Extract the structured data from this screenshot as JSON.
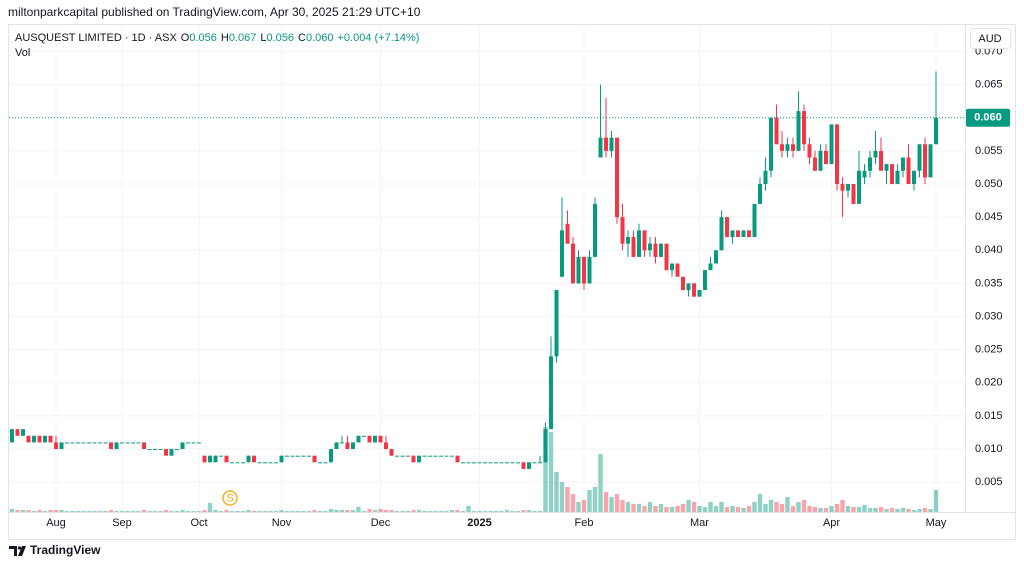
{
  "header": {
    "publisher": "miltonparkcapital published on TradingView.com, Apr 30, 2025 21:29 UTC+10"
  },
  "chart_data": {
    "type": "candlestick",
    "symbol": "AUSQUEST LIMITED · 1D · ASX",
    "legend": [
      {
        "key": "O",
        "value": "0.056"
      },
      {
        "key": "H",
        "value": "0.067"
      },
      {
        "key": "L",
        "value": "0.056"
      },
      {
        "key": "C",
        "value": "0.060"
      }
    ],
    "change_label": "+0.004 (+7.14%)",
    "volume_label": "Vol",
    "currency": "AUD",
    "last_price_label": "0.060",
    "event_marker": "S",
    "brand": "TradingView",
    "up_color": "#089981",
    "down_color": "#f23645",
    "grid": true,
    "ylim": [
      0.0005,
      0.074
    ],
    "yticks": [
      0.005,
      {
        "value": 0.01,
        "label": "0.010"
      },
      0.015,
      {
        "value": 0.02,
        "label": "0.020"
      },
      0.025,
      {
        "value": 0.03,
        "label": "0.030"
      },
      0.035,
      {
        "value": 0.04,
        "label": "0.040"
      },
      0.045,
      {
        "value": 0.05,
        "label": "0.050"
      },
      0.055,
      {
        "value": 0.06,
        "label": "0.060"
      },
      0.065,
      {
        "value": 0.07,
        "label": "0.070"
      }
    ],
    "categories": [
      null,
      null,
      null,
      null,
      null,
      null,
      null,
      null,
      "Aug",
      null,
      null,
      null,
      null,
      null,
      null,
      null,
      null,
      null,
      null,
      null,
      "Sep",
      null,
      null,
      null,
      null,
      null,
      null,
      null,
      null,
      null,
      null,
      null,
      null,
      null,
      "Oct",
      null,
      null,
      null,
      null,
      null,
      null,
      null,
      null,
      null,
      null,
      null,
      null,
      null,
      null,
      "Nov",
      null,
      null,
      null,
      null,
      null,
      null,
      null,
      null,
      null,
      null,
      null,
      null,
      null,
      null,
      null,
      null,
      null,
      "Dec",
      null,
      null,
      null,
      null,
      null,
      null,
      null,
      null,
      null,
      null,
      null,
      null,
      null,
      null,
      null,
      null,
      null,
      "2025",
      null,
      null,
      null,
      null,
      null,
      null,
      null,
      null,
      null,
      null,
      null,
      null,
      null,
      null,
      null,
      null,
      null,
      null,
      "Feb",
      null,
      null,
      null,
      null,
      null,
      null,
      null,
      null,
      null,
      null,
      null,
      null,
      null,
      null,
      null,
      null,
      null,
      null,
      null,
      null,
      "Mar",
      null,
      null,
      null,
      null,
      null,
      null,
      null,
      null,
      null,
      null,
      null,
      null,
      null,
      null,
      null,
      null,
      null,
      null,
      null,
      null,
      null,
      null,
      null,
      "Apr",
      null,
      null,
      null,
      null,
      null,
      null,
      null,
      null,
      null,
      null,
      null,
      null,
      null,
      null,
      null,
      null,
      null,
      null,
      "May"
    ],
    "bold_categories": [
      "2025"
    ],
    "open": [
      0.011,
      0.013,
      0.012,
      0.012,
      0.011,
      0.012,
      0.011,
      0.012,
      0.011,
      0.01,
      0.011,
      0.011,
      0.011,
      0.011,
      0.011,
      0.011,
      0.011,
      0.011,
      0.011,
      0.01,
      0.011,
      0.011,
      0.011,
      0.011,
      0.011,
      0.01,
      0.01,
      0.01,
      0.01,
      0.009,
      0.01,
      0.01,
      0.011,
      0.011,
      0.011,
      0.009,
      0.008,
      0.008,
      0.009,
      0.009,
      0.008,
      0.008,
      0.008,
      0.008,
      0.009,
      0.008,
      0.008,
      0.008,
      0.008,
      0.008,
      0.009,
      0.009,
      0.009,
      0.009,
      0.009,
      0.009,
      0.008,
      0.008,
      0.008,
      0.01,
      0.011,
      0.011,
      0.01,
      0.011,
      0.012,
      0.012,
      0.011,
      0.012,
      0.011,
      0.01,
      0.009,
      0.009,
      0.009,
      0.009,
      0.008,
      0.009,
      0.009,
      0.009,
      0.009,
      0.009,
      0.009,
      0.009,
      0.008,
      0.008,
      0.008,
      0.008,
      0.008,
      0.008,
      0.008,
      0.008,
      0.008,
      0.008,
      0.008,
      0.008,
      0.007,
      0.008,
      0.008,
      0.008,
      0.013,
      0.024,
      0.036,
      0.044,
      0.041,
      0.035,
      0.039,
      0.035,
      0.039,
      0.054,
      0.057,
      0.055,
      0.057,
      0.045,
      0.041,
      0.042,
      0.039,
      0.043,
      0.04,
      0.041,
      0.039,
      0.041,
      0.037,
      0.038,
      0.036,
      0.034,
      0.035,
      0.033,
      0.034,
      0.037,
      0.038,
      0.04,
      0.045,
      0.042,
      0.043,
      0.042,
      0.043,
      0.042,
      0.047,
      0.05,
      0.052,
      0.06,
      0.056,
      0.055,
      0.056,
      0.055,
      0.061,
      0.056,
      0.054,
      0.052,
      0.055,
      0.053,
      0.059,
      0.05,
      0.049,
      0.05,
      0.047,
      0.051,
      0.052,
      0.054,
      0.055,
      0.052,
      0.053,
      0.05,
      0.052,
      0.054,
      0.05,
      0.052,
      0.056,
      0.051,
      0.056
    ],
    "high": [
      0.013,
      0.013,
      0.013,
      0.012,
      0.012,
      0.012,
      0.012,
      0.012,
      0.012,
      0.011,
      0.011,
      0.011,
      0.011,
      0.011,
      0.011,
      0.011,
      0.011,
      0.011,
      0.011,
      0.011,
      0.011,
      0.011,
      0.011,
      0.011,
      0.011,
      0.01,
      0.01,
      0.01,
      0.01,
      0.01,
      0.01,
      0.011,
      0.011,
      0.011,
      0.011,
      0.009,
      0.009,
      0.009,
      0.009,
      0.009,
      0.008,
      0.008,
      0.008,
      0.009,
      0.009,
      0.008,
      0.008,
      0.008,
      0.008,
      0.009,
      0.009,
      0.009,
      0.009,
      0.009,
      0.009,
      0.009,
      0.008,
      0.008,
      0.01,
      0.011,
      0.012,
      0.012,
      0.011,
      0.012,
      0.012,
      0.012,
      0.012,
      0.012,
      0.012,
      0.01,
      0.009,
      0.009,
      0.009,
      0.009,
      0.009,
      0.009,
      0.009,
      0.009,
      0.009,
      0.009,
      0.009,
      0.009,
      0.008,
      0.008,
      0.008,
      0.008,
      0.008,
      0.008,
      0.008,
      0.008,
      0.008,
      0.008,
      0.008,
      0.008,
      0.008,
      0.008,
      0.009,
      0.014,
      0.027,
      0.034,
      0.048,
      0.046,
      0.042,
      0.04,
      0.039,
      0.04,
      0.048,
      0.065,
      0.063,
      0.058,
      0.057,
      0.047,
      0.043,
      0.043,
      0.044,
      0.043,
      0.042,
      0.042,
      0.041,
      0.041,
      0.038,
      0.038,
      0.036,
      0.035,
      0.035,
      0.034,
      0.037,
      0.039,
      0.04,
      0.046,
      0.045,
      0.043,
      0.043,
      0.043,
      0.043,
      0.047,
      0.051,
      0.054,
      0.06,
      0.062,
      0.058,
      0.057,
      0.057,
      0.064,
      0.062,
      0.057,
      0.055,
      0.056,
      0.056,
      0.059,
      0.059,
      0.051,
      0.05,
      0.05,
      0.055,
      0.053,
      0.055,
      0.058,
      0.057,
      0.053,
      0.053,
      0.053,
      0.054,
      0.056,
      0.052,
      0.056,
      0.057,
      0.056,
      0.067
    ],
    "low": [
      0.011,
      0.012,
      0.012,
      0.011,
      0.011,
      0.011,
      0.011,
      0.011,
      0.01,
      0.01,
      0.011,
      0.011,
      0.011,
      0.011,
      0.011,
      0.011,
      0.011,
      0.011,
      0.01,
      0.01,
      0.011,
      0.011,
      0.011,
      0.011,
      0.01,
      0.01,
      0.01,
      0.01,
      0.009,
      0.009,
      0.01,
      0.01,
      0.011,
      0.011,
      0.011,
      0.008,
      0.008,
      0.008,
      0.009,
      0.008,
      0.008,
      0.008,
      0.008,
      0.008,
      0.008,
      0.008,
      0.008,
      0.008,
      0.008,
      0.008,
      0.009,
      0.009,
      0.009,
      0.009,
      0.009,
      0.008,
      0.008,
      0.008,
      0.008,
      0.01,
      0.011,
      0.01,
      0.01,
      0.011,
      0.012,
      0.011,
      0.011,
      0.011,
      0.01,
      0.009,
      0.009,
      0.009,
      0.009,
      0.008,
      0.008,
      0.009,
      0.009,
      0.009,
      0.009,
      0.009,
      0.009,
      0.008,
      0.008,
      0.008,
      0.008,
      0.008,
      0.008,
      0.008,
      0.008,
      0.008,
      0.008,
      0.008,
      0.008,
      0.007,
      0.007,
      0.008,
      0.008,
      0.008,
      0.013,
      0.023,
      0.036,
      0.041,
      0.035,
      0.035,
      0.034,
      0.035,
      0.039,
      0.054,
      0.054,
      0.054,
      0.044,
      0.04,
      0.039,
      0.039,
      0.039,
      0.039,
      0.039,
      0.038,
      0.039,
      0.037,
      0.036,
      0.036,
      0.034,
      0.033,
      0.033,
      0.033,
      0.034,
      0.037,
      0.038,
      0.04,
      0.042,
      0.041,
      0.042,
      0.042,
      0.042,
      0.042,
      0.047,
      0.049,
      0.051,
      0.056,
      0.054,
      0.054,
      0.054,
      0.055,
      0.055,
      0.053,
      0.052,
      0.052,
      0.053,
      0.053,
      0.049,
      0.045,
      0.048,
      0.047,
      0.047,
      0.05,
      0.051,
      0.053,
      0.052,
      0.05,
      0.05,
      0.05,
      0.051,
      0.05,
      0.049,
      0.051,
      0.05,
      0.051,
      0.056
    ],
    "close": [
      0.013,
      0.012,
      0.013,
      0.011,
      0.012,
      0.011,
      0.012,
      0.011,
      0.01,
      0.011,
      0.011,
      0.011,
      0.011,
      0.011,
      0.011,
      0.011,
      0.011,
      0.011,
      0.01,
      0.011,
      0.011,
      0.011,
      0.011,
      0.011,
      0.01,
      0.01,
      0.01,
      0.01,
      0.009,
      0.01,
      0.01,
      0.011,
      0.011,
      0.011,
      0.011,
      0.008,
      0.009,
      0.009,
      0.009,
      0.008,
      0.008,
      0.008,
      0.008,
      0.009,
      0.008,
      0.008,
      0.008,
      0.008,
      0.008,
      0.009,
      0.009,
      0.009,
      0.009,
      0.009,
      0.009,
      0.008,
      0.008,
      0.008,
      0.01,
      0.011,
      0.011,
      0.01,
      0.011,
      0.012,
      0.012,
      0.011,
      0.012,
      0.011,
      0.01,
      0.009,
      0.009,
      0.009,
      0.009,
      0.008,
      0.009,
      0.009,
      0.009,
      0.009,
      0.009,
      0.009,
      0.009,
      0.008,
      0.008,
      0.008,
      0.008,
      0.008,
      0.008,
      0.008,
      0.008,
      0.008,
      0.008,
      0.008,
      0.008,
      0.007,
      0.008,
      0.008,
      0.008,
      0.013,
      0.024,
      0.034,
      0.043,
      0.041,
      0.035,
      0.039,
      0.035,
      0.039,
      0.047,
      0.057,
      0.055,
      0.057,
      0.045,
      0.041,
      0.042,
      0.039,
      0.043,
      0.04,
      0.041,
      0.039,
      0.041,
      0.037,
      0.038,
      0.036,
      0.034,
      0.035,
      0.033,
      0.034,
      0.037,
      0.038,
      0.04,
      0.045,
      0.042,
      0.043,
      0.042,
      0.043,
      0.042,
      0.047,
      0.05,
      0.052,
      0.06,
      0.056,
      0.055,
      0.056,
      0.055,
      0.061,
      0.056,
      0.054,
      0.052,
      0.055,
      0.053,
      0.059,
      0.05,
      0.049,
      0.05,
      0.047,
      0.052,
      0.052,
      0.054,
      0.055,
      0.052,
      0.053,
      0.05,
      0.052,
      0.054,
      0.05,
      0.052,
      0.056,
      0.051,
      0.056,
      0.06
    ],
    "volume": [
      3,
      2,
      2,
      2,
      1,
      2,
      1,
      2,
      2,
      2,
      1,
      1,
      1,
      1,
      1,
      1,
      1,
      1,
      2,
      1,
      1,
      1,
      1,
      1,
      2,
      1,
      1,
      1,
      2,
      1,
      1,
      2,
      1,
      1,
      1,
      2,
      9,
      2,
      1,
      2,
      1,
      1,
      1,
      2,
      1,
      1,
      1,
      1,
      1,
      2,
      1,
      1,
      1,
      1,
      1,
      2,
      1,
      1,
      3,
      2,
      2,
      2,
      2,
      5,
      1,
      3,
      2,
      3,
      2,
      2,
      1,
      1,
      1,
      2,
      2,
      1,
      1,
      1,
      1,
      1,
      2,
      2,
      1,
      6,
      1,
      1,
      1,
      1,
      1,
      1,
      2,
      1,
      1,
      2,
      2,
      1,
      1,
      85,
      80,
      40,
      30,
      25,
      18,
      10,
      12,
      22,
      25,
      58,
      20,
      15,
      18,
      12,
      10,
      8,
      8,
      6,
      10,
      6,
      8,
      5,
      5,
      6,
      8,
      12,
      10,
      6,
      5,
      10,
      6,
      10,
      5,
      6,
      5,
      4,
      6,
      10,
      18,
      8,
      12,
      10,
      8,
      15,
      6,
      10,
      12,
      6,
      5,
      4,
      4,
      6,
      8,
      12,
      6,
      5,
      5,
      7,
      4,
      4,
      5,
      3,
      4,
      3,
      4,
      3,
      2,
      3,
      4,
      3,
      22
    ]
  }
}
